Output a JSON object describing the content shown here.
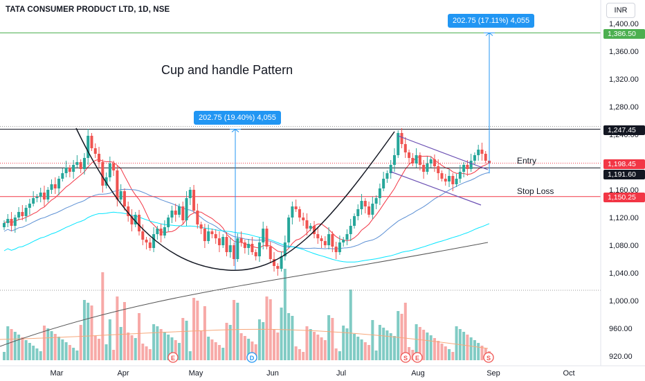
{
  "header": {
    "title": "TATA CONSUMER PRODUCT LTD, 1D, NSE",
    "currency_button": "INR"
  },
  "annotations": {
    "headline": "Cup and handle Pattern",
    "entry_label": "Entry",
    "stoploss_label": "Stop Loss",
    "measure_left": "202.75 (19.40%) 4,055",
    "measure_right": "202.75 (17.11%) 4,055"
  },
  "price_tags": {
    "target": "1,386.50",
    "resistance": "1,247.45",
    "last": "1,198.45",
    "entry": "1,191.60",
    "stop_loss": "1,150.25"
  },
  "colors": {
    "up": "#26a69a",
    "down": "#ef5350",
    "target_line": "#4caf50",
    "measure": "#2196f3",
    "stop_line": "#f23645",
    "ma_short": "#f23645",
    "ma_mid": "#5b8fd4",
    "ma_long": "#00e5ff",
    "ma_200": "#555555",
    "channel": "#6a4fb3"
  },
  "events": {
    "earnings": "E",
    "dividend": "D",
    "split": "S"
  },
  "chart_data": {
    "type": "candlestick",
    "symbol": "TATA CONSUMER PRODUCT LTD",
    "interval": "1D",
    "exchange": "NSE",
    "y_range": [
      905,
      1415
    ],
    "y_ticks": [
      "1,400.00",
      "1,360.00",
      "1,320.00",
      "1,280.00",
      "1,240.00",
      "1,200.00",
      "1,160.00",
      "1,120.00",
      "1,080.00",
      "1,040.00",
      "1,000.00",
      "960.00",
      "920.00"
    ],
    "y_tick_values": [
      1400,
      1360,
      1320,
      1280,
      1240,
      1200,
      1160,
      1120,
      1080,
      1040,
      1000,
      960,
      920
    ],
    "x_ticks": [
      "Mar",
      "Apr",
      "May",
      "Jun",
      "Jul",
      "Aug",
      "Sep",
      "Oct"
    ],
    "horizontal_levels": {
      "target": 1386.5,
      "resistance": 1247.45,
      "last": 1198.45,
      "entry": 1191.6,
      "stop_loss": 1150.25,
      "support": 1015
    },
    "measure_ranges": [
      {
        "from": 1044.7,
        "to": 1247.45,
        "change": 202.75,
        "percent": 19.4,
        "bars": 4055
      },
      {
        "from": 1183.75,
        "to": 1386.5,
        "change": 202.75,
        "percent": 17.11,
        "bars": 4055
      }
    ],
    "closes": [
      1112,
      1118,
      1108,
      1120,
      1128,
      1122,
      1134,
      1140,
      1148,
      1150,
      1156,
      1146,
      1160,
      1168,
      1162,
      1176,
      1184,
      1192,
      1186,
      1196,
      1200,
      1190,
      1206,
      1238,
      1220,
      1212,
      1200,
      1166,
      1178,
      1198,
      1188,
      1146,
      1158,
      1136,
      1122,
      1110,
      1124,
      1100,
      1088,
      1084,
      1076,
      1096,
      1104,
      1094,
      1106,
      1120,
      1130,
      1124,
      1136,
      1116,
      1148,
      1160,
      1130,
      1110,
      1104,
      1086,
      1100,
      1096,
      1090,
      1080,
      1092,
      1070,
      1080,
      1060,
      1090,
      1084,
      1076,
      1082,
      1070,
      1064,
      1084,
      1104,
      1078,
      1060,
      1050,
      1046,
      1064,
      1084,
      1120,
      1136,
      1132,
      1120,
      1116,
      1104,
      1108,
      1096,
      1090,
      1086,
      1080,
      1096,
      1078,
      1070,
      1084,
      1088,
      1096,
      1108,
      1122,
      1132,
      1144,
      1136,
      1124,
      1140,
      1148,
      1162,
      1176,
      1184,
      1196,
      1210,
      1242,
      1226,
      1214,
      1206,
      1198,
      1210,
      1196,
      1186,
      1198,
      1204,
      1194,
      1184,
      1176,
      1172,
      1180,
      1168,
      1176,
      1186,
      1196,
      1190,
      1202,
      1210,
      1218,
      1212,
      1202,
      1198
    ],
    "volume_scale": "relative"
  }
}
